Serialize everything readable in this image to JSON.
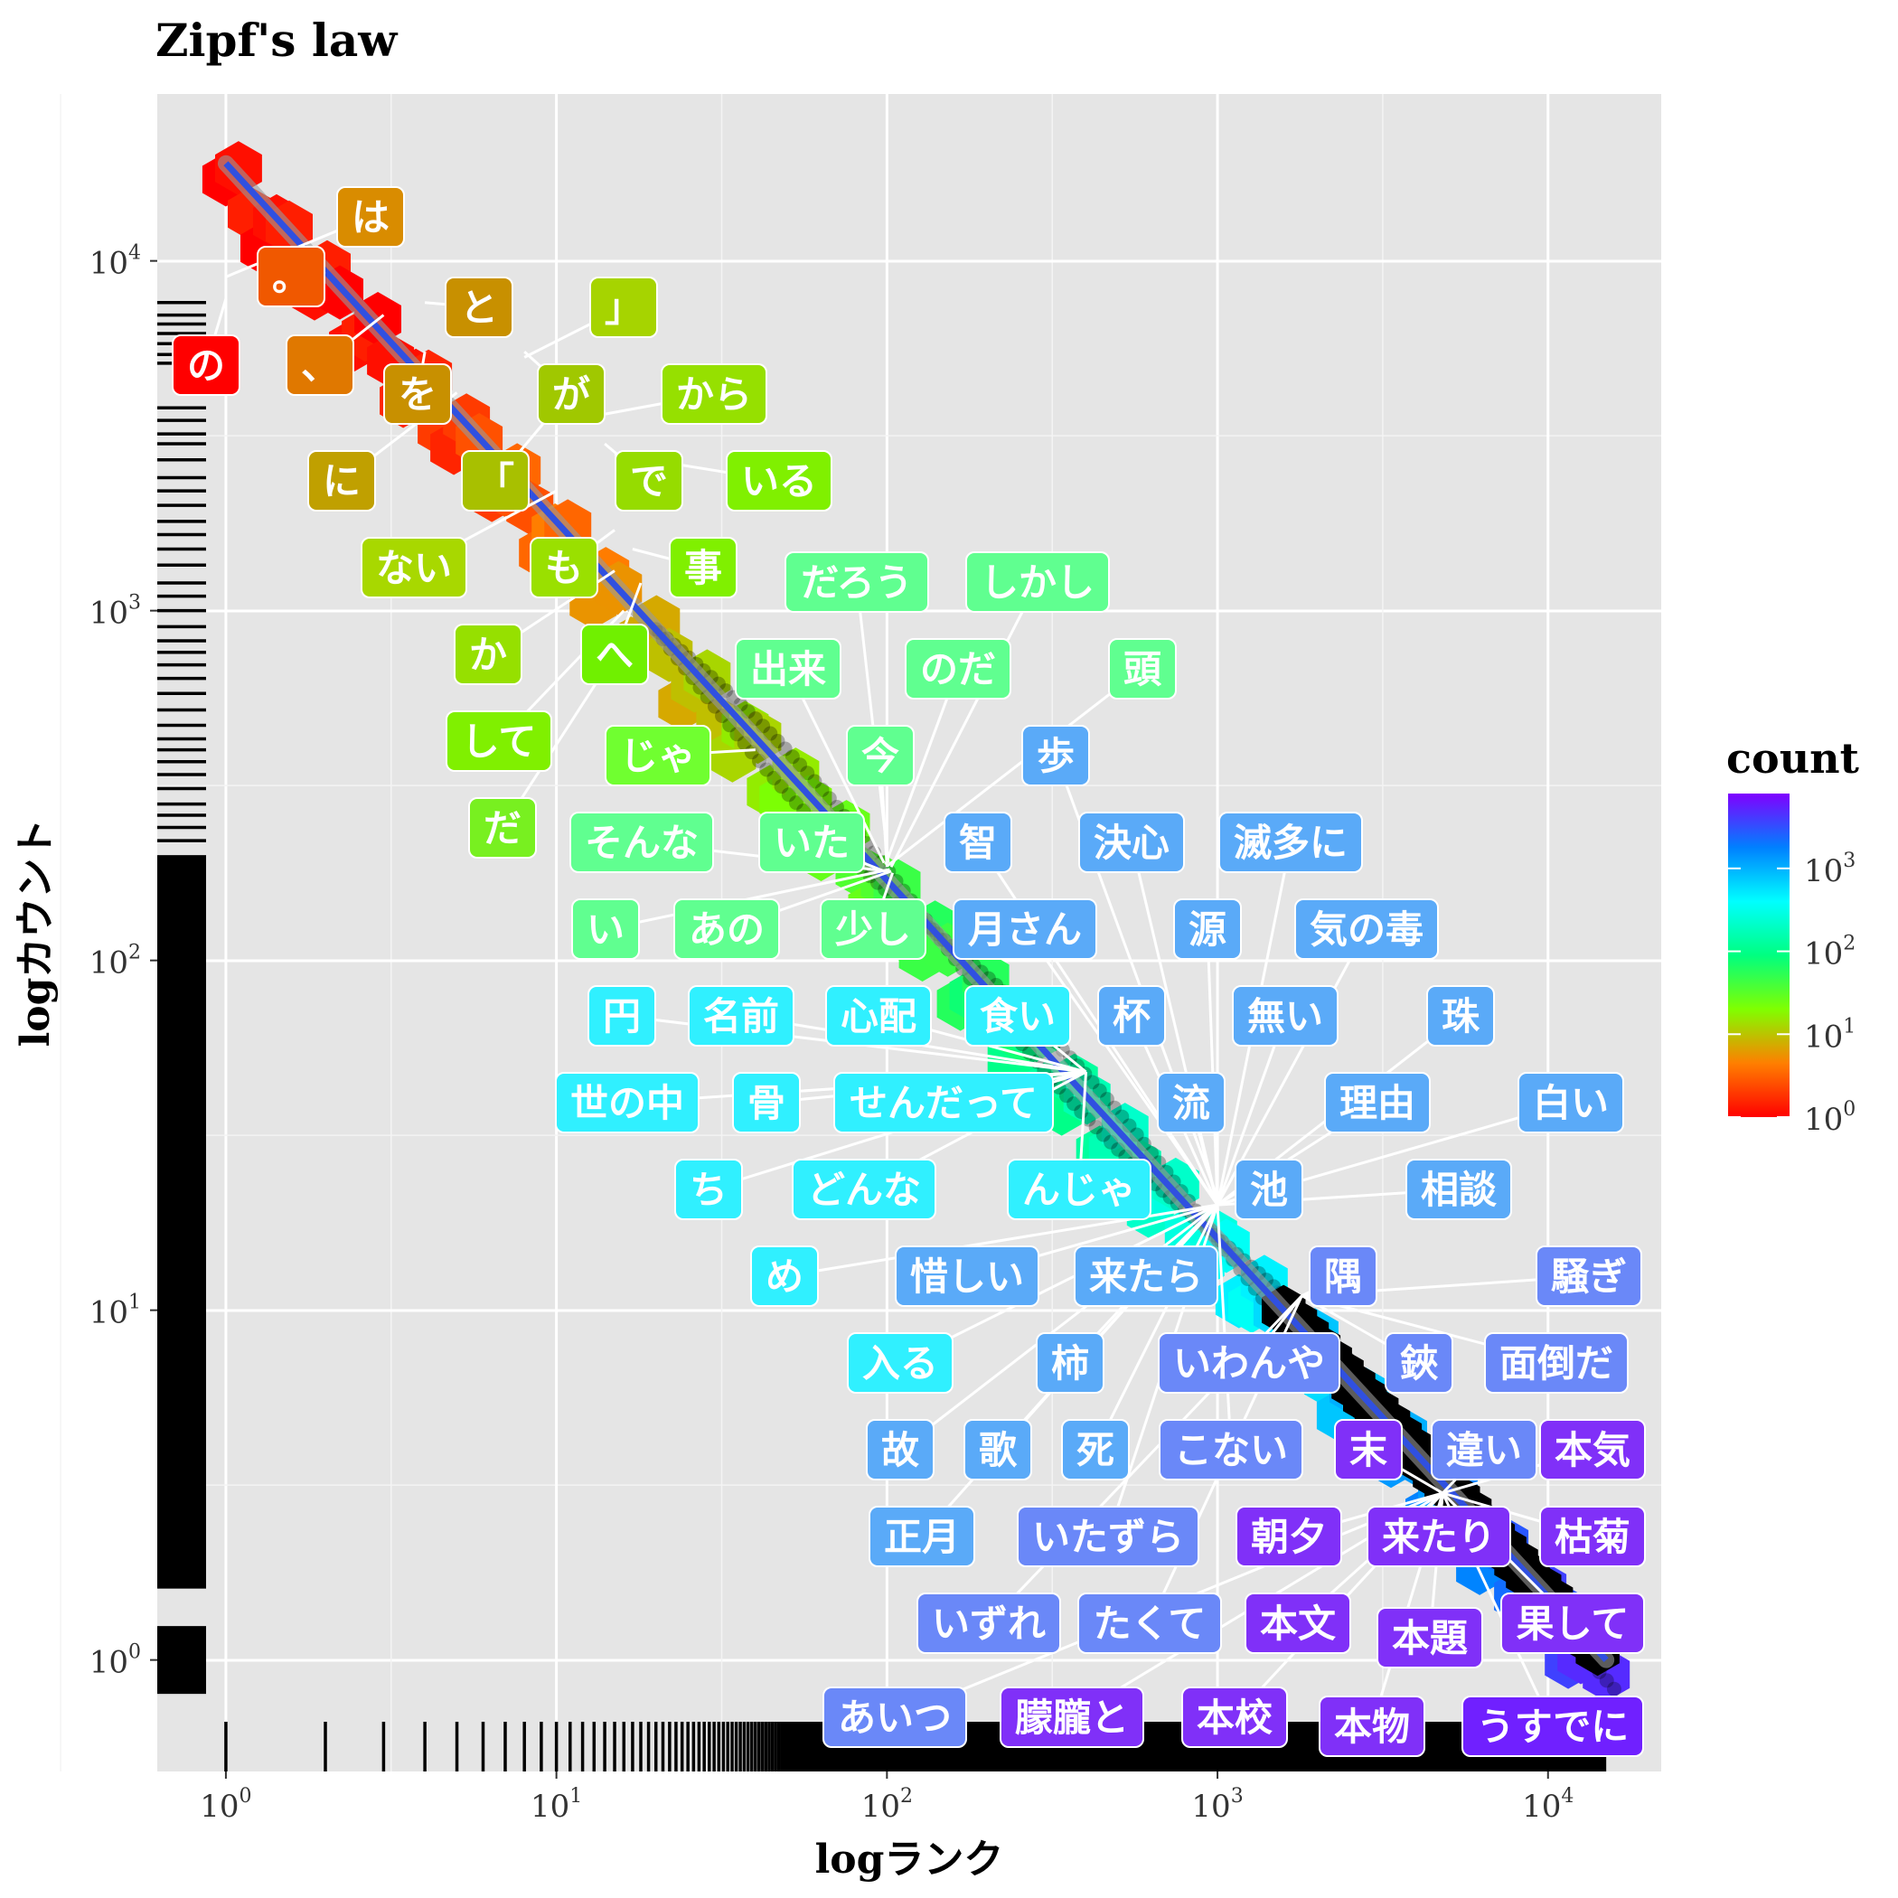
{
  "chart_data": {
    "type": "scatter",
    "title": "Zipf's law",
    "xlabel": "logランク",
    "ylabel": "logカウント",
    "x_scale": "log10",
    "y_scale": "log10",
    "xlim": [
      0.62,
      22000
    ],
    "ylim": [
      0.48,
      30000
    ],
    "x_ticks": [
      {
        "base": "10",
        "exp": "0",
        "value": 1
      },
      {
        "base": "10",
        "exp": "1",
        "value": 10
      },
      {
        "base": "10",
        "exp": "2",
        "value": 100
      },
      {
        "base": "10",
        "exp": "3",
        "value": 1000
      },
      {
        "base": "10",
        "exp": "4",
        "value": 10000
      }
    ],
    "y_ticks": [
      {
        "base": "10",
        "exp": "0",
        "value": 1
      },
      {
        "base": "10",
        "exp": "1",
        "value": 10
      },
      {
        "base": "10",
        "exp": "2",
        "value": 100
      },
      {
        "base": "10",
        "exp": "3",
        "value": 1000
      },
      {
        "base": "10",
        "exp": "4",
        "value": 10000
      }
    ],
    "grid": true,
    "fit_line": {
      "x": [
        1,
        15000
      ],
      "y": [
        19000,
        1.0
      ],
      "color": "#3050e0"
    },
    "legend": {
      "title": "count",
      "position": "right",
      "colors": [
        "#ff0000",
        "#ff7f00",
        "#80ff00",
        "#00ff80",
        "#00ffff",
        "#0080ff",
        "#8000ff"
      ],
      "ticks": [
        {
          "base": "10",
          "exp": "3",
          "value": 1000
        },
        {
          "base": "10",
          "exp": "2",
          "value": 100
        },
        {
          "base": "10",
          "exp": "1",
          "value": 10
        },
        {
          "base": "10",
          "exp": "0",
          "value": 1
        }
      ],
      "range": [
        1,
        8000
      ]
    },
    "labels": [
      {
        "text": "は",
        "x": 1,
        "y": 9000,
        "lx": 410,
        "ly": 240,
        "c": "#d98c00"
      },
      {
        "text": "の",
        "x": 1,
        "y": 7800,
        "lx": 228,
        "ly": 404,
        "c": "#ff0000"
      },
      {
        "text": "。",
        "x": 2,
        "y": 9300,
        "lx": 322,
        "ly": 306,
        "c": "#f05800"
      },
      {
        "text": "と",
        "x": 4,
        "y": 7600,
        "lx": 530,
        "ly": 340,
        "c": "#c89000"
      },
      {
        "text": "」",
        "x": 8,
        "y": 5300,
        "lx": 690,
        "ly": 340,
        "c": "#a6d400"
      },
      {
        "text": "、",
        "x": 3,
        "y": 7000,
        "lx": 354,
        "ly": 404,
        "c": "#e07800"
      },
      {
        "text": "を",
        "x": 4,
        "y": 5500,
        "lx": 462,
        "ly": 436,
        "c": "#c89000"
      },
      {
        "text": "が",
        "x": 8,
        "y": 5500,
        "lx": 632,
        "ly": 436,
        "c": "#a0c800"
      },
      {
        "text": "から",
        "x": 13,
        "y": 3600,
        "lx": 790,
        "ly": 436,
        "c": "#96e000"
      },
      {
        "text": "に",
        "x": 5,
        "y": 4200,
        "lx": 378,
        "ly": 532,
        "c": "#c0a000"
      },
      {
        "text": "「",
        "x": 10,
        "y": 3800,
        "lx": 548,
        "ly": 532,
        "c": "#a8c000"
      },
      {
        "text": "で",
        "x": 14,
        "y": 3000,
        "lx": 718,
        "ly": 532,
        "c": "#96dc00"
      },
      {
        "text": "いる",
        "x": 15,
        "y": 2800,
        "lx": 862,
        "ly": 532,
        "c": "#80f000"
      },
      {
        "text": "ない",
        "x": 10,
        "y": 2200,
        "lx": 458,
        "ly": 628,
        "c": "#a8d800"
      },
      {
        "text": "も",
        "x": 15,
        "y": 1700,
        "lx": 624,
        "ly": 628,
        "c": "#9ae000"
      },
      {
        "text": "事",
        "x": 17,
        "y": 1500,
        "lx": 778,
        "ly": 628,
        "c": "#80f000"
      },
      {
        "text": "だろう",
        "x": 101,
        "y": 190,
        "lx": 948,
        "ly": 644,
        "c": "#60ff90"
      },
      {
        "text": "しかし",
        "x": 103,
        "y": 185,
        "lx": 1148,
        "ly": 644,
        "c": "#60ff90"
      },
      {
        "text": "か",
        "x": 15,
        "y": 1300,
        "lx": 540,
        "ly": 724,
        "c": "#96e000"
      },
      {
        "text": "へ",
        "x": 18,
        "y": 1200,
        "lx": 680,
        "ly": 724,
        "c": "#70f000"
      },
      {
        "text": "出来",
        "x": 98,
        "y": 190,
        "lx": 872,
        "ly": 740,
        "c": "#60ff90"
      },
      {
        "text": "のだ",
        "x": 99,
        "y": 188,
        "lx": 1060,
        "ly": 740,
        "c": "#60ff90"
      },
      {
        "text": "頭",
        "x": 100,
        "y": 186,
        "lx": 1264,
        "ly": 740,
        "c": "#60ff90"
      },
      {
        "text": "して",
        "x": 16,
        "y": 1000,
        "lx": 552,
        "ly": 820,
        "c": "#80f000"
      },
      {
        "text": "じゃ",
        "x": 40,
        "y": 400,
        "lx": 728,
        "ly": 836,
        "c": "#70ff30"
      },
      {
        "text": "今",
        "x": 100,
        "y": 185,
        "lx": 974,
        "ly": 836,
        "c": "#60ff90"
      },
      {
        "text": "歩",
        "x": 1000,
        "y": 21,
        "lx": 1168,
        "ly": 836,
        "c": "#5aaaf8"
      },
      {
        "text": "だ",
        "x": 17,
        "y": 900,
        "lx": 556,
        "ly": 916,
        "c": "#78f020"
      },
      {
        "text": "そんな",
        "x": 100,
        "y": 180,
        "lx": 710,
        "ly": 932,
        "c": "#60ff90"
      },
      {
        "text": "いた",
        "x": 101,
        "y": 178,
        "lx": 898,
        "ly": 932,
        "c": "#60ff90"
      },
      {
        "text": "智",
        "x": 1000,
        "y": 20,
        "lx": 1082,
        "ly": 932,
        "c": "#5aaaf8"
      },
      {
        "text": "決心",
        "x": 1000,
        "y": 20,
        "lx": 1252,
        "ly": 932,
        "c": "#5aaaf8"
      },
      {
        "text": "滅多に",
        "x": 1000,
        "y": 20,
        "lx": 1428,
        "ly": 932,
        "c": "#5aaaf8"
      },
      {
        "text": "い",
        "x": 102,
        "y": 182,
        "lx": 670,
        "ly": 1028,
        "c": "#60ff90"
      },
      {
        "text": "あの",
        "x": 103,
        "y": 180,
        "lx": 804,
        "ly": 1028,
        "c": "#60ff90"
      },
      {
        "text": "少し",
        "x": 104,
        "y": 178,
        "lx": 966,
        "ly": 1028,
        "c": "#60ff90"
      },
      {
        "text": "月さん",
        "x": 1000,
        "y": 20,
        "lx": 1134,
        "ly": 1028,
        "c": "#5aaaf8"
      },
      {
        "text": "源",
        "x": 1000,
        "y": 20,
        "lx": 1336,
        "ly": 1028,
        "c": "#5aaaf8"
      },
      {
        "text": "気の毒",
        "x": 1000,
        "y": 20,
        "lx": 1512,
        "ly": 1028,
        "c": "#5aaaf8"
      },
      {
        "text": "円",
        "x": 400,
        "y": 48,
        "lx": 688,
        "ly": 1124,
        "c": "#30f0ff"
      },
      {
        "text": "名前",
        "x": 400,
        "y": 48,
        "lx": 820,
        "ly": 1124,
        "c": "#30f0ff"
      },
      {
        "text": "心配",
        "x": 400,
        "y": 48,
        "lx": 972,
        "ly": 1124,
        "c": "#30f0ff"
      },
      {
        "text": "食い",
        "x": 400,
        "y": 48,
        "lx": 1126,
        "ly": 1124,
        "c": "#30f0ff"
      },
      {
        "text": "杯",
        "x": 1000,
        "y": 20,
        "lx": 1252,
        "ly": 1124,
        "c": "#5aaaf8"
      },
      {
        "text": "無い",
        "x": 1000,
        "y": 20,
        "lx": 1422,
        "ly": 1124,
        "c": "#5aaaf8"
      },
      {
        "text": "珠",
        "x": 1000,
        "y": 20,
        "lx": 1616,
        "ly": 1124,
        "c": "#5aaaf8"
      },
      {
        "text": "世の中",
        "x": 400,
        "y": 48,
        "lx": 694,
        "ly": 1220,
        "c": "#30f0ff"
      },
      {
        "text": "骨",
        "x": 400,
        "y": 48,
        "lx": 848,
        "ly": 1220,
        "c": "#30f0ff"
      },
      {
        "text": "せんだって",
        "x": 400,
        "y": 48,
        "lx": 1044,
        "ly": 1220,
        "c": "#30f0ff"
      },
      {
        "text": "流",
        "x": 1000,
        "y": 20,
        "lx": 1318,
        "ly": 1220,
        "c": "#5aaaf8"
      },
      {
        "text": "理由",
        "x": 1000,
        "y": 20,
        "lx": 1524,
        "ly": 1220,
        "c": "#5aaaf8"
      },
      {
        "text": "白い",
        "x": 1000,
        "y": 20,
        "lx": 1738,
        "ly": 1220,
        "c": "#5aaaf8"
      },
      {
        "text": "ち",
        "x": 400,
        "y": 48,
        "lx": 784,
        "ly": 1316,
        "c": "#30f0ff"
      },
      {
        "text": "どんな",
        "x": 400,
        "y": 48,
        "lx": 956,
        "ly": 1316,
        "c": "#30f0ff"
      },
      {
        "text": "んじゃ",
        "x": 400,
        "y": 48,
        "lx": 1194,
        "ly": 1316,
        "c": "#30f0ff"
      },
      {
        "text": "池",
        "x": 1000,
        "y": 20,
        "lx": 1404,
        "ly": 1316,
        "c": "#5aaaf8"
      },
      {
        "text": "相談",
        "x": 1000,
        "y": 20,
        "lx": 1614,
        "ly": 1316,
        "c": "#5aaaf8"
      },
      {
        "text": "め",
        "x": 1000,
        "y": 20,
        "lx": 868,
        "ly": 1412,
        "c": "#30f0ff"
      },
      {
        "text": "惜しい",
        "x": 1000,
        "y": 20,
        "lx": 1070,
        "ly": 1412,
        "c": "#5aaaf8"
      },
      {
        "text": "来たら",
        "x": 1000,
        "y": 20,
        "lx": 1268,
        "ly": 1412,
        "c": "#5aaaf8"
      },
      {
        "text": "隅",
        "x": 1800,
        "y": 11,
        "lx": 1486,
        "ly": 1412,
        "c": "#6a88f8"
      },
      {
        "text": "騒ぎ",
        "x": 1800,
        "y": 11,
        "lx": 1758,
        "ly": 1412,
        "c": "#6a88f8"
      },
      {
        "text": "入る",
        "x": 1000,
        "y": 20,
        "lx": 996,
        "ly": 1508,
        "c": "#30f0ff"
      },
      {
        "text": "柿",
        "x": 1000,
        "y": 20,
        "lx": 1184,
        "ly": 1508,
        "c": "#5aaaf8"
      },
      {
        "text": "いわんや",
        "x": 1800,
        "y": 11,
        "lx": 1382,
        "ly": 1508,
        "c": "#6a88f8"
      },
      {
        "text": "鋏",
        "x": 1800,
        "y": 11,
        "lx": 1570,
        "ly": 1508,
        "c": "#6a88f8"
      },
      {
        "text": "面倒だ",
        "x": 1800,
        "y": 11,
        "lx": 1722,
        "ly": 1508,
        "c": "#6a88f8"
      },
      {
        "text": "故",
        "x": 1000,
        "y": 20,
        "lx": 996,
        "ly": 1604,
        "c": "#5aaaf8"
      },
      {
        "text": "歌",
        "x": 1000,
        "y": 20,
        "lx": 1104,
        "ly": 1604,
        "c": "#5aaaf8"
      },
      {
        "text": "死",
        "x": 1000,
        "y": 20,
        "lx": 1212,
        "ly": 1604,
        "c": "#5aaaf8"
      },
      {
        "text": "こない",
        "x": 1000,
        "y": 20,
        "lx": 1362,
        "ly": 1604,
        "c": "#6a88f8"
      },
      {
        "text": "末",
        "x": 4800,
        "y": 3,
        "lx": 1514,
        "ly": 1604,
        "c": "#8030f8"
      },
      {
        "text": "違い",
        "x": 4800,
        "y": 3,
        "lx": 1642,
        "ly": 1604,
        "c": "#6a88f8"
      },
      {
        "text": "本気",
        "x": 4800,
        "y": 3,
        "lx": 1762,
        "ly": 1604,
        "c": "#8030f8"
      },
      {
        "text": "正月",
        "x": 1000,
        "y": 20,
        "lx": 1020,
        "ly": 1700,
        "c": "#5aaaf8"
      },
      {
        "text": "いたずら",
        "x": 1000,
        "y": 20,
        "lx": 1226,
        "ly": 1700,
        "c": "#6a88f8"
      },
      {
        "text": "朝夕",
        "x": 4800,
        "y": 3,
        "lx": 1426,
        "ly": 1700,
        "c": "#8030f8"
      },
      {
        "text": "来たり",
        "x": 4800,
        "y": 3,
        "lx": 1592,
        "ly": 1700,
        "c": "#8030f8"
      },
      {
        "text": "枯菊",
        "x": 4800,
        "y": 3,
        "lx": 1762,
        "ly": 1700,
        "c": "#8030f8"
      },
      {
        "text": "いずれ",
        "x": 1800,
        "y": 11,
        "lx": 1094,
        "ly": 1796,
        "c": "#6a88f8"
      },
      {
        "text": "たくて",
        "x": 1800,
        "y": 11,
        "lx": 1272,
        "ly": 1796,
        "c": "#6a88f8"
      },
      {
        "text": "本文",
        "x": 4800,
        "y": 3,
        "lx": 1436,
        "ly": 1796,
        "c": "#8030f8"
      },
      {
        "text": "本題",
        "x": 4800,
        "y": 3,
        "lx": 1582,
        "ly": 1812,
        "c": "#8030f8"
      },
      {
        "text": "果して",
        "x": 4800,
        "y": 3,
        "lx": 1740,
        "ly": 1796,
        "c": "#8030f8"
      },
      {
        "text": "あいつ",
        "x": 4800,
        "y": 3,
        "lx": 990,
        "ly": 1900,
        "c": "#6a88f8"
      },
      {
        "text": "朦朧と",
        "x": 4800,
        "y": 3,
        "lx": 1186,
        "ly": 1900,
        "c": "#8030f8"
      },
      {
        "text": "本校",
        "x": 4800,
        "y": 3,
        "lx": 1366,
        "ly": 1900,
        "c": "#8030f8"
      },
      {
        "text": "本物",
        "x": 4800,
        "y": 3,
        "lx": 1518,
        "ly": 1910,
        "c": "#8030f8"
      },
      {
        "text": "うすでに",
        "x": 4800,
        "y": 3,
        "lx": 1718,
        "ly": 1910,
        "c": "#7020ff"
      }
    ]
  }
}
